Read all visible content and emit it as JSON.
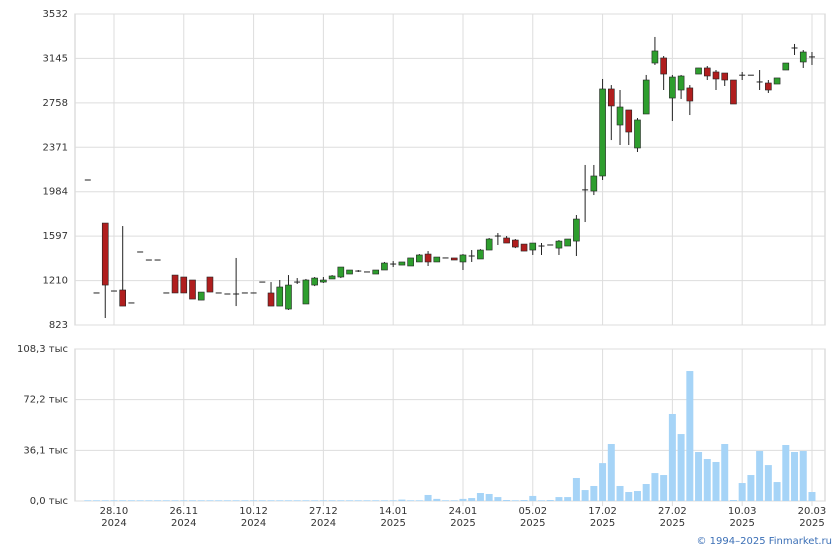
{
  "chart_data": {
    "type": "candlestick",
    "categories": [
      null,
      null,
      null,
      "28.10\n2024",
      null,
      null,
      null,
      null,
      null,
      null,
      null,
      "26.11\n2024",
      null,
      null,
      null,
      null,
      null,
      null,
      null,
      "10.12\n2024",
      null,
      null,
      null,
      null,
      null,
      null,
      null,
      "27.12\n2024",
      null,
      null,
      null,
      null,
      null,
      null,
      null,
      "14.01\n2025",
      null,
      null,
      null,
      null,
      null,
      null,
      null,
      "24.01\n2025",
      null,
      null,
      null,
      null,
      null,
      null,
      null,
      "05.02\n2025",
      null,
      null,
      null,
      null,
      null,
      null,
      null,
      "17.02\n2025",
      null,
      null,
      null,
      null,
      null,
      null,
      null,
      "27.02\n2025",
      null,
      null,
      null,
      null,
      null,
      null,
      null,
      "10.03\n2025",
      null,
      null,
      null,
      null,
      null,
      null,
      null,
      "20.03\n2025"
    ],
    "open": [
      2086,
      1102,
      1711,
      1119,
      1128,
      1015,
      1459,
      1389,
      1389,
      1102,
      1258,
      1241,
      1215,
      1040,
      1241,
      1102,
      1093,
      1093,
      1102,
      1102,
      1197,
      1102,
      988,
      962,
      1197,
      1006,
      1171,
      1197,
      1224,
      1241,
      1267,
      1293,
      1285,
      1267,
      1302,
      1354,
      1345,
      1337,
      1372,
      1441,
      1372,
      1407,
      1407,
      1372,
      1424,
      1398,
      1476,
      1598,
      1581,
      1563,
      1528,
      1476,
      1511,
      1520,
      1493,
      1511,
      1554,
      2000,
      1990,
      2121,
      2879,
      2565,
      2696,
      2365,
      2661,
      3105,
      3149,
      2800,
      2870,
      2888,
      3009,
      3062,
      3027,
      3018,
      2957,
      2999,
      2999,
      2940,
      2931,
      2922,
      3044,
      3236,
      3114,
      3158
    ],
    "high": [
      2086,
      1102,
      1711,
      1119,
      1685,
      1015,
      1459,
      1389,
      1389,
      1102,
      1258,
      1241,
      1215,
      1110,
      1241,
      1102,
      1093,
      1407,
      1102,
      1102,
      1197,
      1197,
      1215,
      1258,
      1232,
      1224,
      1241,
      1241,
      1258,
      1328,
      1302,
      1302,
      1285,
      1302,
      1372,
      1380,
      1372,
      1407,
      1441,
      1467,
      1415,
      1407,
      1407,
      1441,
      1476,
      1484,
      1581,
      1624,
      1598,
      1572,
      1528,
      1537,
      1537,
      1520,
      1563,
      1572,
      1781,
      2217,
      2217,
      2966,
      2913,
      2870,
      2696,
      2626,
      3001,
      3332,
      3166,
      3001,
      3001,
      2913,
      3062,
      3079,
      3044,
      3018,
      2957,
      3027,
      2999,
      3044,
      2957,
      2975,
      3105,
      3271,
      3218,
      3201
    ],
    "low": [
      2086,
      1102,
      884,
      1119,
      988,
      1015,
      1459,
      1389,
      1389,
      1102,
      1102,
      1102,
      1049,
      1040,
      1110,
      1102,
      1093,
      988,
      1102,
      1102,
      1197,
      988,
      988,
      954,
      1180,
      1006,
      1162,
      1189,
      1224,
      1232,
      1267,
      1285,
      1285,
      1267,
      1302,
      1328,
      1345,
      1337,
      1372,
      1337,
      1372,
      1407,
      1389,
      1302,
      1372,
      1398,
      1476,
      1520,
      1537,
      1493,
      1467,
      1433,
      1433,
      1520,
      1433,
      1511,
      1424,
      1720,
      1955,
      2086,
      2434,
      2391,
      2391,
      2330,
      2661,
      3088,
      2870,
      2600,
      2792,
      2652,
      3009,
      2957,
      2870,
      2905,
      2748,
      2957,
      2999,
      2870,
      2844,
      2922,
      3044,
      3175,
      3062,
      3088
    ],
    "close": [
      2086,
      1102,
      1171,
      1119,
      988,
      1015,
      1459,
      1389,
      1389,
      1102,
      1102,
      1102,
      1049,
      1110,
      1110,
      1102,
      1093,
      1093,
      1102,
      1102,
      1197,
      988,
      1154,
      1171,
      1197,
      1215,
      1232,
      1215,
      1250,
      1328,
      1302,
      1293,
      1285,
      1302,
      1363,
      1354,
      1372,
      1407,
      1433,
      1372,
      1415,
      1407,
      1389,
      1433,
      1424,
      1476,
      1572,
      1598,
      1537,
      1502,
      1467,
      1537,
      1511,
      1520,
      1554,
      1572,
      1746,
      2000,
      2121,
      2879,
      2731,
      2722,
      2504,
      2609,
      2957,
      3210,
      3009,
      2983,
      2992,
      2774,
      3062,
      2992,
      2966,
      2957,
      2748,
      2999,
      2999,
      2940,
      2870,
      2975,
      3105,
      3236,
      3201,
      3158
    ],
    "up_color": "#2e9e2e",
    "down_color": "#b01e1e",
    "ylim": [
      823,
      3532
    ],
    "yticks": [
      823,
      1210,
      1597,
      1984,
      2371,
      2758,
      3145,
      3532
    ],
    "grid": true,
    "volume": {
      "type": "bar",
      "color": "#a6d4f7",
      "values": [
        0.5,
        0.5,
        0.5,
        0.5,
        0.5,
        0.5,
        0.5,
        0.5,
        0.5,
        0.5,
        0.5,
        0.5,
        0.5,
        0.5,
        0.5,
        0.5,
        0.5,
        0.5,
        0.5,
        0.5,
        0.5,
        0.5,
        0.5,
        0.5,
        0.5,
        0.5,
        0.5,
        0.5,
        0.5,
        0.5,
        0.5,
        0.5,
        0.5,
        0.5,
        0.5,
        0.5,
        1.0,
        0.5,
        0.5,
        4.3,
        1.5,
        0.5,
        0.5,
        1.5,
        2.1,
        5.7,
        5.0,
        2.8,
        0.7,
        0.5,
        0.7,
        3.6,
        0.5,
        0.7,
        2.8,
        2.8,
        16.4,
        7.8,
        10.7,
        27,
        40.6,
        10.7,
        6.4,
        7.1,
        12.1,
        19.9,
        18.5,
        62,
        47.7,
        92.6,
        34.9,
        29.9,
        27.8,
        40.6,
        0.7,
        12.8,
        18.5,
        35.6,
        25.6,
        13.5,
        39.9,
        34.9,
        35.6,
        6.4
      ],
      "ylim": [
        0,
        108.3
      ],
      "yticks": [
        {
          "value": 0,
          "label": "0,0 тыс"
        },
        {
          "value": 36.1,
          "label": "36,1 тыс"
        },
        {
          "value": 72.2,
          "label": "72,2 тыс"
        },
        {
          "value": 108.3,
          "label": "108,3 тыс"
        }
      ]
    }
  },
  "footer": "© 1994–2025 Finmarket.ru"
}
